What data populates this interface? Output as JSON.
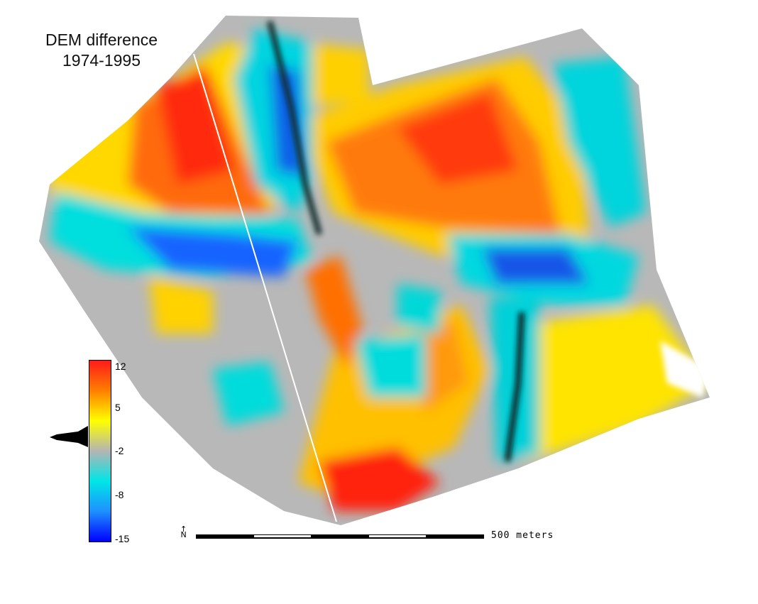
{
  "title": {
    "line1": "DEM difference",
    "line2": "1974-1995"
  },
  "legend": {
    "ticks": [
      "12",
      "5",
      "-2",
      "-8",
      "-15"
    ],
    "colors": [
      "#ff1a1a",
      "#ff7f00",
      "#ffff00",
      "#b4b4b4",
      "#00e6e6",
      "#1e90ff",
      "#0000ff"
    ]
  },
  "scale_bar": {
    "label": "500 meters",
    "north_label": "N"
  }
}
